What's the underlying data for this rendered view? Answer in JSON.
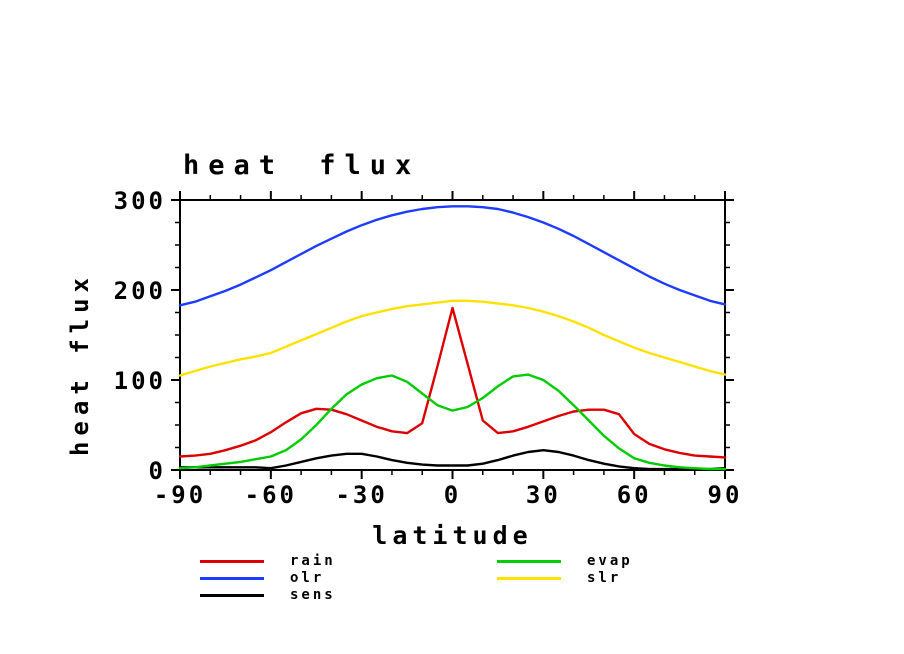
{
  "chart_data": {
    "type": "line",
    "title": "heat flux",
    "xlabel": "latitude",
    "ylabel": "heat flux",
    "xlim": [
      -90,
      90
    ],
    "ylim": [
      0,
      300
    ],
    "x_major_ticks": [
      -90,
      -60,
      -30,
      0,
      30,
      60,
      90
    ],
    "x_minor_step": 10,
    "y_major_ticks": [
      0,
      100,
      200,
      300
    ],
    "y_minor_step": 25,
    "grid": false,
    "legend_position": "bottom",
    "background_color": "#ffffff",
    "axis_color": "#000000",
    "x": [
      -90,
      -85,
      -80,
      -75,
      -70,
      -65,
      -60,
      -55,
      -50,
      -45,
      -40,
      -35,
      -30,
      -25,
      -20,
      -15,
      -10,
      -5,
      0,
      5,
      10,
      15,
      20,
      25,
      30,
      35,
      40,
      45,
      50,
      55,
      60,
      65,
      70,
      75,
      80,
      85,
      90
    ],
    "series": [
      {
        "name": "rain",
        "color": "#dd0000",
        "values": [
          15,
          16,
          18,
          22,
          27,
          33,
          42,
          53,
          63,
          68,
          67,
          62,
          55,
          48,
          43,
          41,
          52,
          115,
          180,
          118,
          55,
          41,
          43,
          48,
          54,
          60,
          65,
          67,
          67,
          62,
          40,
          29,
          23,
          19,
          16,
          15,
          14
        ]
      },
      {
        "name": "olr",
        "color": "#1e3cff",
        "values": [
          183,
          187,
          193,
          199,
          206,
          214,
          222,
          231,
          240,
          249,
          257,
          265,
          272,
          278,
          283,
          287,
          290,
          292,
          293,
          293,
          292,
          290,
          286,
          281,
          275,
          268,
          260,
          251,
          242,
          233,
          224,
          215,
          207,
          200,
          194,
          188,
          184
        ]
      },
      {
        "name": "sens",
        "color": "#000000",
        "values": [
          3,
          3,
          3,
          3,
          3,
          3,
          2,
          5,
          9,
          13,
          16,
          18,
          18,
          15,
          11,
          8,
          6,
          5,
          5,
          5,
          7,
          11,
          16,
          20,
          22,
          20,
          16,
          11,
          7,
          4,
          2,
          1,
          1,
          1,
          1,
          1,
          2
        ]
      },
      {
        "name": "evap",
        "color": "#00cc00",
        "values": [
          2,
          3,
          5,
          7,
          9,
          12,
          15,
          22,
          34,
          50,
          68,
          84,
          95,
          102,
          105,
          98,
          85,
          72,
          66,
          70,
          80,
          93,
          104,
          106,
          100,
          88,
          72,
          55,
          38,
          24,
          13,
          8,
          5,
          3,
          2,
          1,
          1
        ]
      },
      {
        "name": "slr",
        "color": "#ffe100",
        "values": [
          105,
          110,
          115,
          119,
          123,
          126,
          130,
          137,
          144,
          151,
          158,
          165,
          171,
          175,
          179,
          182,
          184,
          186,
          188,
          188,
          187,
          185,
          183,
          180,
          176,
          171,
          165,
          158,
          150,
          143,
          136,
          130,
          125,
          120,
          115,
          110,
          106
        ]
      }
    ]
  }
}
